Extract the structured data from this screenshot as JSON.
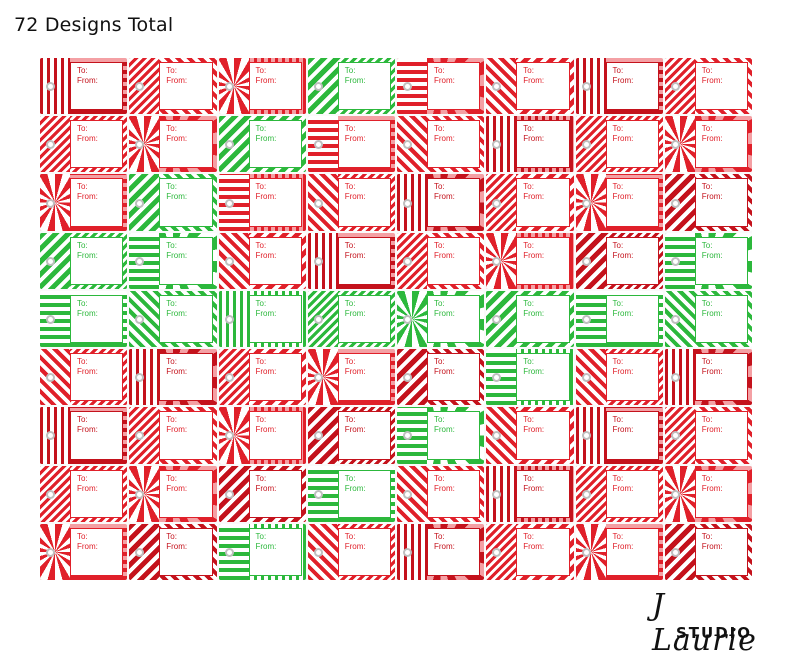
{
  "headline": "72 Designs Total",
  "tag_labels": {
    "to": "To:",
    "from": "From:"
  },
  "colors": {
    "red": "#e0202a",
    "deep_red": "#c4121c",
    "pink": "#f4a0a4",
    "green": "#2cb83c",
    "light_green": "#a6e2ac",
    "white": "#ffffff"
  },
  "logo": {
    "script": "J Laurie",
    "studio": "STUDIO"
  }
}
